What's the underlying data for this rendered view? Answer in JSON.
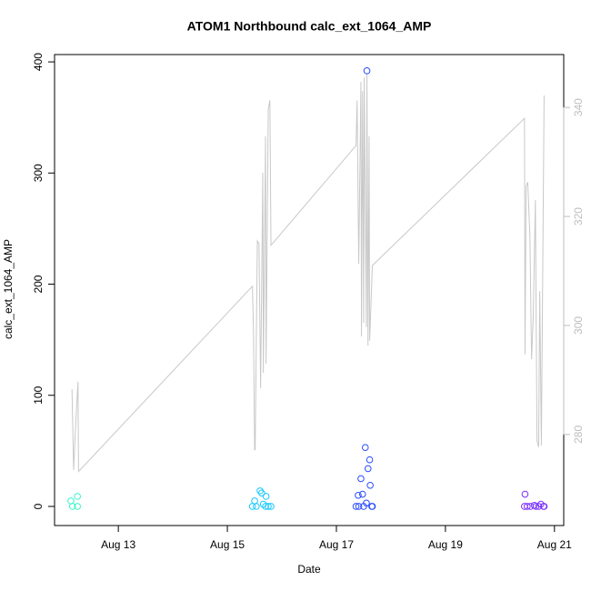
{
  "chart_data": {
    "type": "scatter",
    "title": "ATOM1 Northbound calc_ext_1064_AMP",
    "xlabel": "Date",
    "ylabel": "calc_ext_1064_AMP",
    "xlim": [
      11.83,
      21.17
    ],
    "xticks": [
      {
        "value": 13,
        "label": "Aug 13"
      },
      {
        "value": 15,
        "label": "Aug 15"
      },
      {
        "value": 17,
        "label": "Aug 17"
      },
      {
        "value": 19,
        "label": "Aug 19"
      },
      {
        "value": 21,
        "label": "Aug 21"
      }
    ],
    "ylim": [
      -17.2,
      406.6
    ],
    "yticks": [
      0,
      100,
      200,
      300,
      400
    ],
    "y2lim": [
      263.3,
      349.7
    ],
    "y2ticks": [
      280,
      300,
      320,
      340
    ],
    "y2color": "#bebebe",
    "series": [
      {
        "type": "scatter",
        "color": "#3cf5c8",
        "x": [
          12.13,
          12.16,
          12.25,
          12.25
        ],
        "values": [
          5,
          0,
          9,
          0
        ]
      },
      {
        "type": "scatter",
        "color": "#19c8ff",
        "x": [
          15.46,
          15.5,
          15.53,
          15.6,
          15.63,
          15.66,
          15.7,
          15.71,
          15.75,
          15.8
        ],
        "values": [
          0,
          5,
          0,
          14,
          12,
          2,
          0,
          9,
          0,
          0
        ]
      },
      {
        "type": "scatter",
        "color": "#2a4dff",
        "x": [
          17.36,
          17.4,
          17.41,
          17.45,
          17.48,
          17.5,
          17.53,
          17.55,
          17.56,
          17.58,
          17.61,
          17.62,
          17.65,
          17.66
        ],
        "values": [
          0,
          10,
          0,
          25,
          11,
          0,
          53,
          3,
          392,
          34,
          42,
          19,
          0,
          0
        ]
      },
      {
        "type": "scatter",
        "color": "#7a30ff",
        "x": [
          20.45,
          20.46,
          20.5,
          20.56,
          20.63,
          20.66,
          20.71,
          20.75,
          20.8,
          20.81
        ],
        "values": [
          0,
          11,
          0,
          0,
          1,
          0,
          0,
          2,
          0,
          0
        ]
      },
      {
        "type": "line",
        "axis": "y2",
        "color": "#c8c8c8",
        "x": [
          12.15,
          12.18,
          12.21,
          12.26,
          12.27,
          15.46,
          15.48,
          15.5,
          15.51,
          15.55,
          15.58,
          15.61,
          15.65,
          15.66,
          15.7,
          15.71,
          15.75,
          15.78,
          15.8,
          17.36,
          17.38,
          17.41,
          17.45,
          17.46,
          17.48,
          17.5,
          17.51,
          17.55,
          17.56,
          17.58,
          17.6,
          17.61,
          17.66,
          20.45,
          20.46,
          20.48,
          20.51,
          20.55,
          20.58,
          20.61,
          20.65,
          20.68,
          20.71,
          20.73,
          20.76,
          20.81
        ],
        "values": [
          288.3,
          273.5,
          280.3,
          289.7,
          273.2,
          307.2,
          298.5,
          277.2,
          277.2,
          315.5,
          315,
          288.5,
          328,
          291.3,
          334.7,
          293,
          339.7,
          341.3,
          314.7,
          333,
          341.3,
          311.3,
          344.7,
          298,
          343,
          300.5,
          345.5,
          299.7,
          346.3,
          296.3,
          334.7,
          297.2,
          311,
          338,
          294.7,
          325.5,
          326.3,
          316.3,
          293.8,
          301.3,
          323,
          278.8,
          277.7,
          306.3,
          278,
          342.2
        ]
      }
    ]
  }
}
